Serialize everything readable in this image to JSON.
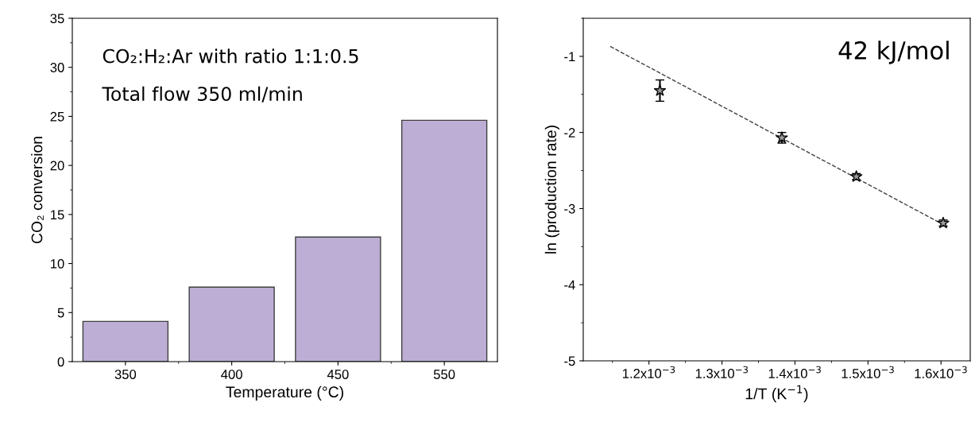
{
  "chart_data": [
    {
      "type": "bar",
      "xlabel": "Temperature (°C)",
      "ylabel": "CO₂ conversion",
      "categories": [
        "350",
        "400",
        "450",
        "550"
      ],
      "values": [
        4.1,
        7.6,
        12.7,
        24.6
      ],
      "color": "#bcaed4",
      "ylim": [
        0,
        35
      ],
      "yticks": [
        0,
        5,
        10,
        15,
        20,
        25,
        30,
        35
      ],
      "grid": false,
      "legend": false,
      "annotations": [
        "CO₂:H₂:Ar with ratio 1:1:0.5",
        "Total flow 350 ml/min"
      ]
    },
    {
      "type": "scatter",
      "xlabel": "1/T (K$^{−1}$)",
      "ylabel": "ln (production rate)",
      "xlim": [
        0.00111,
        0.00164
      ],
      "ylim": [
        -5,
        -0.5
      ],
      "xticks": [
        {
          "value": 0.0012,
          "label": "1.2x10$^{−3}$"
        },
        {
          "value": 0.0013,
          "label": "1.3x10$^{−3}$"
        },
        {
          "value": 0.0014,
          "label": "1.4x10$^{−3}$"
        },
        {
          "value": 0.0015,
          "label": "1.5x10$^{−3}$"
        },
        {
          "value": 0.0016,
          "label": "1.6x10$^{−3}$"
        }
      ],
      "yticks": [
        -5,
        -4,
        -3,
        -2,
        -1
      ],
      "grid": false,
      "legend": false,
      "series": [
        {
          "type": "scatter",
          "color": "#000000",
          "marker": "star",
          "x": [
            0.001215,
            0.001382,
            0.001484,
            0.001603
          ],
          "values": [
            -1.45,
            -2.07,
            -2.58,
            -3.19
          ],
          "errors": [
            0.14,
            0.07,
            0.04,
            0.04
          ]
        },
        {
          "type": "line",
          "color": "#404040",
          "marker": "none",
          "line_style": "dashed",
          "x": [
            0.001147,
            0.001603
          ],
          "values": [
            -0.87,
            -3.21
          ]
        }
      ],
      "annotations": [
        "42 kJ/mol"
      ]
    }
  ]
}
